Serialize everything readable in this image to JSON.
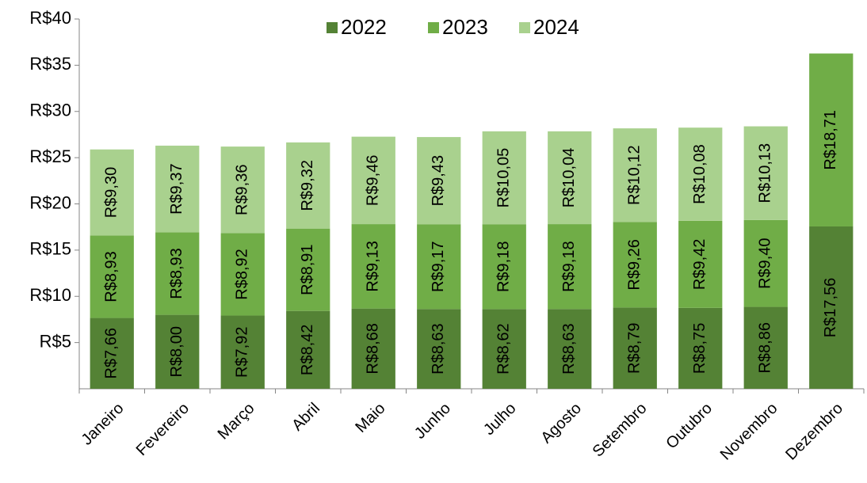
{
  "chart_data": {
    "type": "bar",
    "stacked": true,
    "categories": [
      "Janeiro",
      "Fevereiro",
      "Março",
      "Abril",
      "Maio",
      "Junho",
      "Julho",
      "Agosto",
      "Setembro",
      "Outubro",
      "Novembro",
      "Dezembro"
    ],
    "series": [
      {
        "name": "2022",
        "color": "#548235",
        "values": [
          7.66,
          8.0,
          7.92,
          8.42,
          8.68,
          8.63,
          8.62,
          8.63,
          8.79,
          8.75,
          8.86,
          17.56
        ],
        "value_labels": [
          "R$7,66",
          "R$8,00",
          "R$7,92",
          "R$8,42",
          "R$8,68",
          "R$8,63",
          "R$8,62",
          "R$8,63",
          "R$8,79",
          "R$8,75",
          "R$8,86",
          "R$17,56"
        ]
      },
      {
        "name": "2023",
        "color": "#70ad47",
        "values": [
          8.93,
          8.93,
          8.92,
          8.91,
          9.13,
          9.17,
          9.18,
          9.18,
          9.26,
          9.42,
          9.4,
          18.71
        ],
        "value_labels": [
          "R$8,93",
          "R$8,93",
          "R$8,92",
          "R$8,91",
          "R$9,13",
          "R$9,17",
          "R$9,18",
          "R$9,18",
          "R$9,26",
          "R$9,42",
          "R$9,40",
          "R$18,71"
        ]
      },
      {
        "name": "2024",
        "color": "#a9d18e",
        "values": [
          9.3,
          9.37,
          9.36,
          9.32,
          9.46,
          9.43,
          10.05,
          10.04,
          10.12,
          10.08,
          10.13,
          null
        ],
        "value_labels": [
          "R$9,30",
          "R$9,37",
          "R$9,36",
          "R$9,32",
          "R$9,46",
          "R$9,43",
          "R$10,05",
          "R$10,04",
          "R$10,12",
          "R$10,08",
          "R$10,13",
          null
        ]
      }
    ],
    "ylim": [
      0,
      40
    ],
    "yticks": [
      {
        "value": 5,
        "label": "R$5"
      },
      {
        "value": 10,
        "label": "R$10"
      },
      {
        "value": 15,
        "label": "R$15"
      },
      {
        "value": 20,
        "label": "R$20"
      },
      {
        "value": 25,
        "label": "R$25"
      },
      {
        "value": 30,
        "label": "R$30"
      },
      {
        "value": 35,
        "label": "R$35"
      },
      {
        "value": 40,
        "label": "R$40"
      }
    ],
    "legend": "top",
    "grid": false
  }
}
